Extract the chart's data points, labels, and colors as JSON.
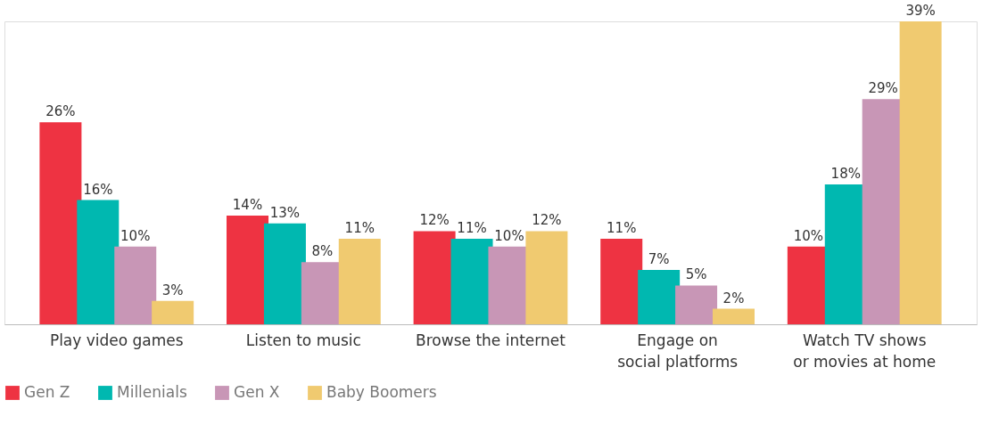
{
  "chart_data": {
    "type": "bar",
    "categories": [
      "Play video games",
      "Listen to music",
      "Browse the internet",
      "Engage on\nsocial platforms",
      "Watch TV shows\nor movies at home"
    ],
    "series": [
      {
        "name": "Gen Z",
        "color": "#ee3342",
        "values": [
          26,
          14,
          12,
          11,
          10
        ],
        "value_labels": [
          "26%",
          "14%",
          "12%",
          "11%",
          "10%"
        ]
      },
      {
        "name": "Millenials",
        "color": "#00b8b0",
        "values": [
          16,
          13,
          11,
          7,
          18
        ],
        "value_labels": [
          "16%",
          "13%",
          "11%",
          "7%",
          "18%"
        ]
      },
      {
        "name": "Gen X",
        "color": "#c896b6",
        "values": [
          10,
          8,
          10,
          5,
          29
        ],
        "value_labels": [
          "10%",
          "8%",
          "10%",
          "5%",
          "29%"
        ]
      },
      {
        "name": "Baby Boomers",
        "color": "#f0ca70",
        "values": [
          3,
          11,
          12,
          2,
          39
        ],
        "value_labels": [
          "3%",
          "11%",
          "12%",
          "2%",
          "39%"
        ]
      }
    ],
    "ylim": [
      0,
      39
    ],
    "legend": "bottom",
    "grid": false
  }
}
